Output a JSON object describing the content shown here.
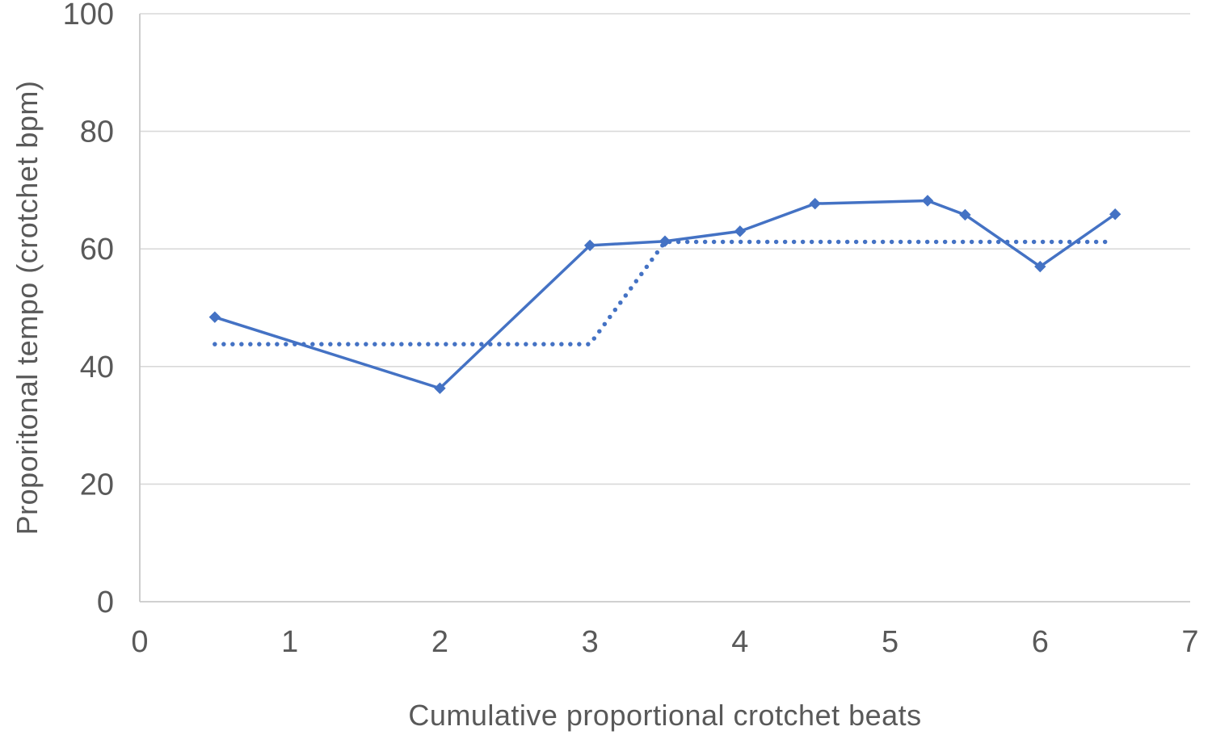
{
  "chart_data": {
    "type": "line",
    "title": "",
    "xlabel": "Cumulative proportional crotchet beats",
    "ylabel": "Proporitonal tempo (crotchet bpm)",
    "xlim": [
      0,
      7
    ],
    "ylim": [
      0,
      100
    ],
    "x_ticks": [
      0,
      1,
      2,
      3,
      4,
      5,
      6,
      7
    ],
    "y_ticks": [
      0,
      20,
      40,
      60,
      80,
      100
    ],
    "grid": "horizontal-only",
    "legend": "none",
    "colors": {
      "series_blue": "#4472C4",
      "gridline": "#D9D9D9",
      "axis_line": "#C9C9C9",
      "text": "#595959"
    },
    "series": [
      {
        "name": "solid-series",
        "line_style": "solid",
        "marker": "diamond",
        "points": [
          [
            0.5,
            48.4
          ],
          [
            2,
            36.3
          ],
          [
            3,
            60.6
          ],
          [
            3.5,
            61.3
          ],
          [
            4,
            63
          ],
          [
            4.5,
            67.7
          ],
          [
            5.25,
            68.2
          ],
          [
            5.5,
            65.8
          ],
          [
            6,
            57
          ],
          [
            6.5,
            65.9
          ]
        ]
      },
      {
        "name": "dotted-series",
        "line_style": "dotted",
        "marker": "none",
        "points": [
          [
            0.5,
            43.8
          ],
          [
            3,
            43.8
          ],
          [
            3.5,
            61.2
          ],
          [
            6.45,
            61.2
          ]
        ]
      }
    ]
  }
}
